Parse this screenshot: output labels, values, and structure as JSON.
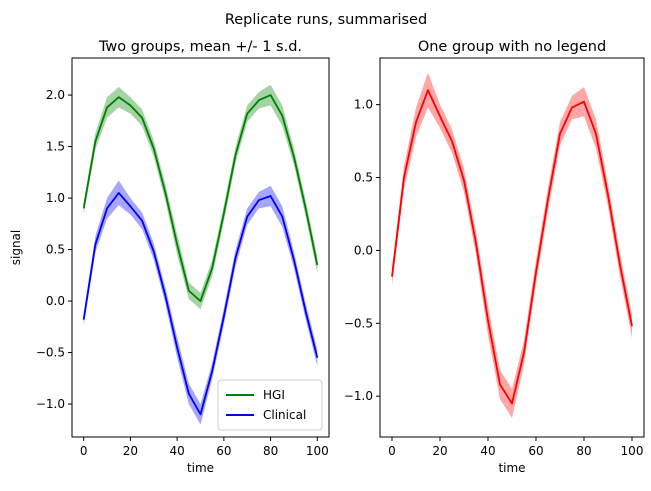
{
  "figure": {
    "suptitle": "Replicate runs, summarised"
  },
  "chart_data": [
    {
      "type": "line",
      "title": "Two groups, mean +/- 1 s.d.",
      "xlabel": "time",
      "ylabel": "signal",
      "xlim": [
        -5,
        105
      ],
      "ylim": [
        -1.32,
        2.36
      ],
      "xticks": [
        0,
        20,
        40,
        60,
        80,
        100
      ],
      "xtick_labels": [
        "0",
        "20",
        "40",
        "60",
        "80",
        "100"
      ],
      "yticks": [
        -1.0,
        -0.5,
        0.0,
        0.5,
        1.0,
        1.5,
        2.0
      ],
      "ytick_labels": [
        "−1.0",
        "−0.5",
        "0.0",
        "0.5",
        "1.0",
        "1.5",
        "2.0"
      ],
      "grid": false,
      "legend": {
        "location": "lower-right"
      },
      "x": [
        0,
        5,
        10,
        15,
        20,
        25,
        30,
        35,
        40,
        45,
        50,
        55,
        60,
        65,
        70,
        75,
        80,
        85,
        90,
        95,
        100
      ],
      "series": [
        {
          "name": "HGI",
          "color": "#008000",
          "band": "mean +/- 1 s.d.",
          "mean": [
            0.9,
            1.55,
            1.88,
            1.98,
            1.9,
            1.78,
            1.48,
            1.05,
            0.55,
            0.1,
            0.0,
            0.32,
            0.85,
            1.42,
            1.82,
            1.95,
            2.0,
            1.8,
            1.4,
            0.9,
            0.35
          ],
          "sd": [
            0.06,
            0.08,
            0.1,
            0.1,
            0.08,
            0.08,
            0.08,
            0.08,
            0.1,
            0.08,
            0.08,
            0.08,
            0.08,
            0.08,
            0.08,
            0.08,
            0.1,
            0.1,
            0.08,
            0.08,
            0.08
          ]
        },
        {
          "name": "Clinical",
          "color": "#0000ff",
          "band": "mean +/- 1 s.d.",
          "mean": [
            -0.18,
            0.55,
            0.9,
            1.05,
            0.92,
            0.78,
            0.48,
            0.05,
            -0.45,
            -0.9,
            -1.1,
            -0.68,
            -0.15,
            0.42,
            0.82,
            0.98,
            1.02,
            0.82,
            0.4,
            -0.1,
            -0.55
          ],
          "sd": [
            0.06,
            0.08,
            0.1,
            0.12,
            0.08,
            0.08,
            0.08,
            0.08,
            0.1,
            0.1,
            0.1,
            0.08,
            0.08,
            0.08,
            0.08,
            0.08,
            0.1,
            0.1,
            0.08,
            0.08,
            0.08
          ]
        }
      ]
    },
    {
      "type": "line",
      "title": "One group with no legend",
      "xlabel": "time",
      "ylabel": "",
      "xlim": [
        -5,
        105
      ],
      "ylim": [
        -1.28,
        1.32
      ],
      "xticks": [
        0,
        20,
        40,
        60,
        80,
        100
      ],
      "xtick_labels": [
        "0",
        "20",
        "40",
        "60",
        "80",
        "100"
      ],
      "yticks": [
        -1.0,
        -0.5,
        0.0,
        0.5,
        1.0
      ],
      "ytick_labels": [
        "−1.0",
        "−0.5",
        "0.0",
        "0.5",
        "1.0"
      ],
      "grid": false,
      "legend": null,
      "x": [
        0,
        5,
        10,
        15,
        20,
        25,
        30,
        35,
        40,
        45,
        50,
        55,
        60,
        65,
        70,
        75,
        80,
        85,
        90,
        95,
        100
      ],
      "series": [
        {
          "color": "#ff0000",
          "band": "mean +/- 1 s.d.",
          "mean": [
            -0.18,
            0.5,
            0.88,
            1.1,
            0.92,
            0.75,
            0.48,
            0.05,
            -0.48,
            -0.92,
            -1.05,
            -0.7,
            -0.15,
            0.35,
            0.8,
            0.98,
            1.02,
            0.8,
            0.38,
            -0.1,
            -0.52
          ],
          "sd": [
            0.06,
            0.08,
            0.1,
            0.12,
            0.08,
            0.08,
            0.08,
            0.08,
            0.1,
            0.1,
            0.1,
            0.08,
            0.08,
            0.08,
            0.08,
            0.08,
            0.1,
            0.1,
            0.08,
            0.08,
            0.08
          ]
        }
      ]
    }
  ]
}
